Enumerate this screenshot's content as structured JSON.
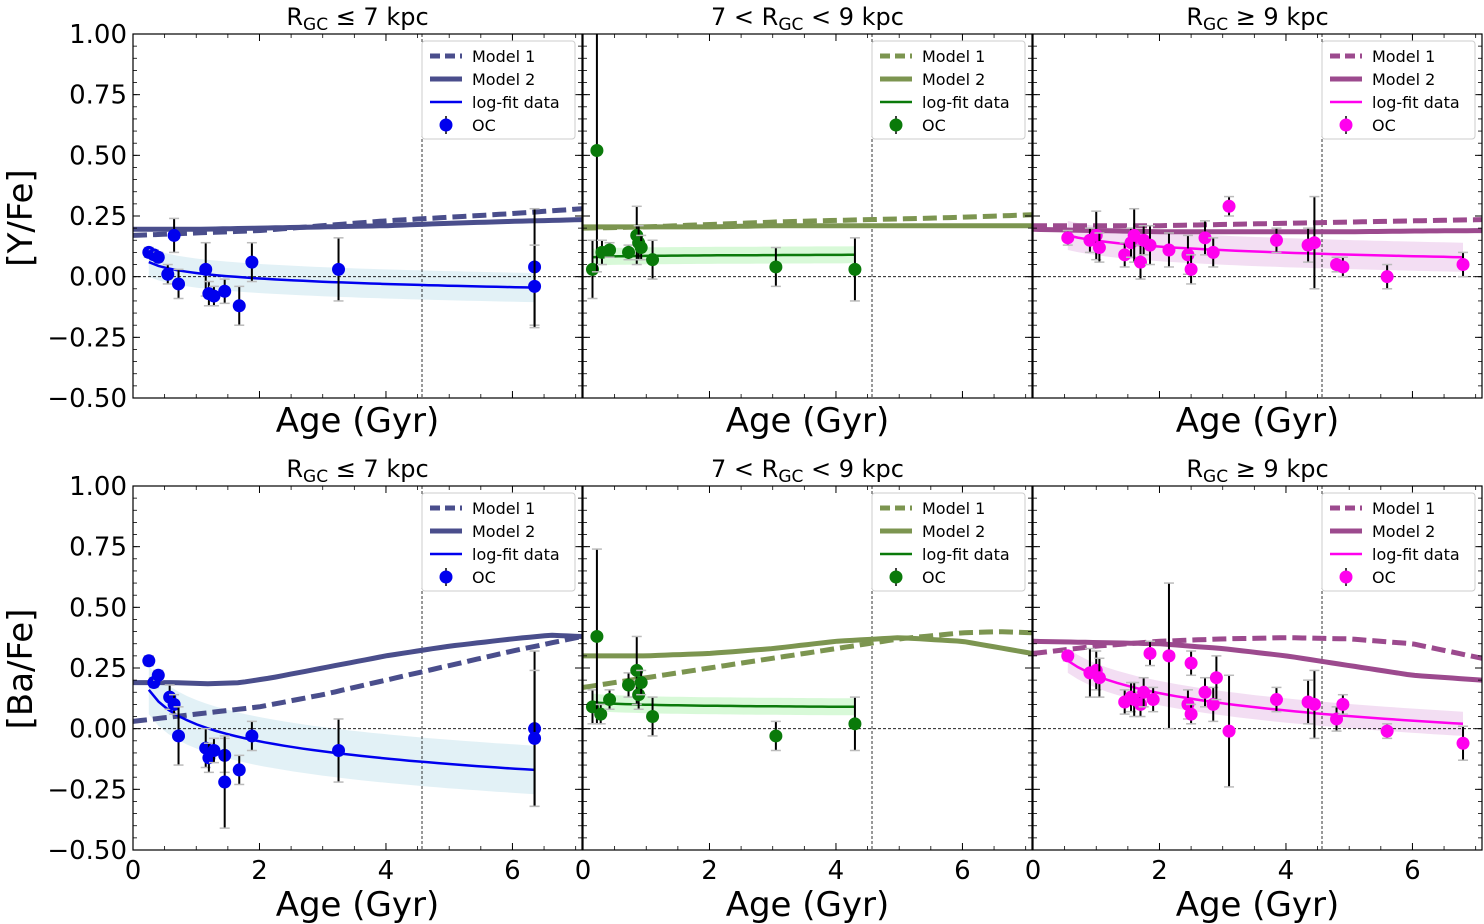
{
  "figure": {
    "x_axis_label": "Age (Gyr)",
    "row_ylabels": [
      "[Y/Fe]",
      "[Ba/Fe]"
    ]
  },
  "chart_data": [
    {
      "type": "scatter",
      "title": "R_GC ≤ 7 kpc",
      "ylabel": "[Y/Fe]",
      "xlabel": "Age (Gyr)",
      "xlim": [
        0,
        7.1
      ],
      "ylim": [
        -0.5,
        1.0
      ],
      "color": "#0000ee",
      "model_color": "#4a4e8c",
      "sun_age": 4.57,
      "legend": [
        "Model 1",
        "Model 2",
        "log-fit data",
        "OC"
      ],
      "points": [
        {
          "x": 0.25,
          "y": 0.1,
          "err": 0.02
        },
        {
          "x": 0.33,
          "y": 0.09,
          "err": 0.02
        },
        {
          "x": 0.4,
          "y": 0.08,
          "err": 0.02
        },
        {
          "x": 0.55,
          "y": 0.01,
          "err": 0.04
        },
        {
          "x": 0.65,
          "y": 0.17,
          "err": 0.07
        },
        {
          "x": 0.72,
          "y": -0.03,
          "err": 0.06
        },
        {
          "x": 1.15,
          "y": 0.03,
          "err": 0.11
        },
        {
          "x": 1.2,
          "y": -0.07,
          "err": 0.05
        },
        {
          "x": 1.28,
          "y": -0.08,
          "err": 0.04
        },
        {
          "x": 1.45,
          "y": -0.06,
          "err": 0.05
        },
        {
          "x": 1.68,
          "y": -0.12,
          "err": 0.08
        },
        {
          "x": 1.88,
          "y": 0.06,
          "err": 0.08
        },
        {
          "x": 3.25,
          "y": 0.03,
          "err": 0.13
        },
        {
          "x": 6.35,
          "y": 0.04,
          "err": 0.24
        },
        {
          "x": 6.35,
          "y": -0.04,
          "err": 0.17
        }
      ],
      "fit": {
        "x0": 0.25,
        "x1": 6.35,
        "y0": 0.06,
        "y1": -0.045,
        "band": 0.06
      },
      "model1": [
        [
          0,
          0.17
        ],
        [
          1,
          0.18
        ],
        [
          2,
          0.19
        ],
        [
          3,
          0.21
        ],
        [
          4,
          0.23
        ],
        [
          5,
          0.245
        ],
        [
          6,
          0.26
        ],
        [
          7.1,
          0.28
        ]
      ],
      "model2": [
        [
          0,
          0.195
        ],
        [
          1,
          0.195
        ],
        [
          2,
          0.2
        ],
        [
          3,
          0.205
        ],
        [
          4,
          0.21
        ],
        [
          5,
          0.22
        ],
        [
          6,
          0.228
        ],
        [
          7.1,
          0.235
        ]
      ]
    },
    {
      "type": "scatter",
      "title": "7 < R_GC < 9 kpc",
      "ylabel": "[Y/Fe]",
      "xlabel": "Age (Gyr)",
      "xlim": [
        0,
        7.1
      ],
      "ylim": [
        -0.5,
        1.0
      ],
      "color": "#0a7a0a",
      "model_color": "#7c9550",
      "sun_age": 4.57,
      "legend": [
        "Model 1",
        "Model 2",
        "log-fit data",
        "OC"
      ],
      "points": [
        {
          "x": 0.15,
          "y": 0.03,
          "err": 0.12
        },
        {
          "x": 0.22,
          "y": 0.52,
          "err": 0.5
        },
        {
          "x": 0.3,
          "y": 0.1,
          "err": 0.05
        },
        {
          "x": 0.42,
          "y": 0.11,
          "err": 0.03
        },
        {
          "x": 0.72,
          "y": 0.1,
          "err": 0.03
        },
        {
          "x": 0.85,
          "y": 0.17,
          "err": 0.12
        },
        {
          "x": 0.88,
          "y": 0.14,
          "err": 0.07
        },
        {
          "x": 0.92,
          "y": 0.12,
          "err": 0.05
        },
        {
          "x": 1.1,
          "y": 0.07,
          "err": 0.08
        },
        {
          "x": 3.05,
          "y": 0.04,
          "err": 0.08
        },
        {
          "x": 4.3,
          "y": 0.03,
          "err": 0.13
        }
      ],
      "fit": {
        "x0": 0.15,
        "x1": 4.3,
        "y0": 0.08,
        "y1": 0.09,
        "band": 0.035
      },
      "model1": [
        [
          0,
          0.2
        ],
        [
          1,
          0.205
        ],
        [
          2,
          0.215
        ],
        [
          3,
          0.225
        ],
        [
          4,
          0.232
        ],
        [
          5,
          0.238
        ],
        [
          6,
          0.245
        ],
        [
          7.1,
          0.255
        ]
      ],
      "model2": [
        [
          0,
          0.205
        ],
        [
          1,
          0.205
        ],
        [
          2,
          0.205
        ],
        [
          3,
          0.21
        ],
        [
          4,
          0.21
        ],
        [
          5,
          0.21
        ],
        [
          6,
          0.21
        ],
        [
          7.1,
          0.21
        ]
      ]
    },
    {
      "type": "scatter",
      "title": "R_GC ≥ 9 kpc",
      "ylabel": "[Y/Fe]",
      "xlabel": "Age (Gyr)",
      "xlim": [
        0,
        7.1
      ],
      "ylim": [
        -0.5,
        1.0
      ],
      "color": "#ff00ee",
      "model_color": "#9c4a8e",
      "sun_age": 4.57,
      "legend": [
        "Model 1",
        "Model 2",
        "log-fit data",
        "OC"
      ],
      "points": [
        {
          "x": 0.55,
          "y": 0.16,
          "err": 0.03
        },
        {
          "x": 0.9,
          "y": 0.15,
          "err": 0.05
        },
        {
          "x": 1.0,
          "y": 0.17,
          "err": 0.1
        },
        {
          "x": 1.05,
          "y": 0.12,
          "err": 0.06
        },
        {
          "x": 1.45,
          "y": 0.09,
          "err": 0.05
        },
        {
          "x": 1.55,
          "y": 0.14,
          "err": 0.06
        },
        {
          "x": 1.6,
          "y": 0.17,
          "err": 0.11
        },
        {
          "x": 1.7,
          "y": 0.06,
          "err": 0.07
        },
        {
          "x": 1.75,
          "y": 0.15,
          "err": 0.06
        },
        {
          "x": 1.85,
          "y": 0.13,
          "err": 0.08
        },
        {
          "x": 2.15,
          "y": 0.11,
          "err": 0.07
        },
        {
          "x": 2.45,
          "y": 0.09,
          "err": 0.08
        },
        {
          "x": 2.5,
          "y": 0.03,
          "err": 0.06
        },
        {
          "x": 2.72,
          "y": 0.16,
          "err": 0.07
        },
        {
          "x": 2.85,
          "y": 0.1,
          "err": 0.06
        },
        {
          "x": 3.1,
          "y": 0.29,
          "err": 0.04
        },
        {
          "x": 3.85,
          "y": 0.15,
          "err": 0.05
        },
        {
          "x": 4.35,
          "y": 0.13,
          "err": 0.07
        },
        {
          "x": 4.45,
          "y": 0.14,
          "err": 0.19
        },
        {
          "x": 4.8,
          "y": 0.05,
          "err": 0.03
        },
        {
          "x": 4.9,
          "y": 0.04,
          "err": 0.04
        },
        {
          "x": 5.6,
          "y": 0.0,
          "err": 0.05
        },
        {
          "x": 6.8,
          "y": 0.05,
          "err": 0.05
        }
      ],
      "fit": {
        "x0": 0.55,
        "x1": 6.8,
        "y0": 0.17,
        "y1": 0.08,
        "band": 0.06
      },
      "model1": [
        [
          0,
          0.21
        ],
        [
          1,
          0.21
        ],
        [
          2,
          0.21
        ],
        [
          3,
          0.215
        ],
        [
          4,
          0.22
        ],
        [
          5,
          0.225
        ],
        [
          6,
          0.23
        ],
        [
          7.1,
          0.235
        ]
      ],
      "model2": [
        [
          0,
          0.195
        ],
        [
          1,
          0.19
        ],
        [
          2,
          0.185
        ],
        [
          3,
          0.185
        ],
        [
          4,
          0.185
        ],
        [
          5,
          0.185
        ],
        [
          6,
          0.188
        ],
        [
          7.1,
          0.19
        ]
      ]
    },
    {
      "type": "scatter",
      "title": "R_GC ≤ 7 kpc",
      "ylabel": "[Ba/Fe]",
      "xlabel": "Age (Gyr)",
      "xlim": [
        0,
        7.1
      ],
      "ylim": [
        -0.5,
        1.0
      ],
      "color": "#0000ee",
      "model_color": "#4a4e8c",
      "sun_age": 4.57,
      "legend": [
        "Model 1",
        "Model 2",
        "log-fit data",
        "OC"
      ],
      "points": [
        {
          "x": 0.25,
          "y": 0.28,
          "err": 0.02
        },
        {
          "x": 0.33,
          "y": 0.19,
          "err": 0.02
        },
        {
          "x": 0.4,
          "y": 0.22,
          "err": 0.02
        },
        {
          "x": 0.58,
          "y": 0.13,
          "err": 0.05
        },
        {
          "x": 0.65,
          "y": 0.1,
          "err": 0.04
        },
        {
          "x": 0.72,
          "y": -0.03,
          "err": 0.12
        },
        {
          "x": 1.15,
          "y": -0.08,
          "err": 0.08
        },
        {
          "x": 1.2,
          "y": -0.12,
          "err": 0.06
        },
        {
          "x": 1.28,
          "y": -0.09,
          "err": 0.05
        },
        {
          "x": 1.45,
          "y": -0.11,
          "err": 0.07
        },
        {
          "x": 1.45,
          "y": -0.22,
          "err": 0.19
        },
        {
          "x": 1.68,
          "y": -0.17,
          "err": 0.06
        },
        {
          "x": 1.88,
          "y": -0.03,
          "err": 0.06
        },
        {
          "x": 3.25,
          "y": -0.09,
          "err": 0.13
        },
        {
          "x": 6.35,
          "y": 0.0,
          "err": 0.32
        },
        {
          "x": 6.35,
          "y": -0.04,
          "err": 0.28
        }
      ],
      "fit": {
        "x0": 0.25,
        "x1": 6.35,
        "y0": 0.16,
        "y1": -0.17,
        "band": 0.1
      },
      "model1": [
        [
          0,
          0.03
        ],
        [
          1,
          0.06
        ],
        [
          2,
          0.09
        ],
        [
          3,
          0.14
        ],
        [
          4,
          0.2
        ],
        [
          5,
          0.26
        ],
        [
          6,
          0.32
        ],
        [
          7.1,
          0.38
        ]
      ],
      "model2": [
        [
          0,
          0.19
        ],
        [
          0.6,
          0.19
        ],
        [
          1.2,
          0.185
        ],
        [
          1.7,
          0.19
        ],
        [
          2.2,
          0.21
        ],
        [
          3,
          0.25
        ],
        [
          4,
          0.3
        ],
        [
          5,
          0.34
        ],
        [
          6,
          0.37
        ],
        [
          6.6,
          0.385
        ],
        [
          7.1,
          0.38
        ]
      ]
    },
    {
      "type": "scatter",
      "title": "7 < R_GC < 9 kpc",
      "ylabel": "[Ba/Fe]",
      "xlabel": "Age (Gyr)",
      "xlim": [
        0,
        7.1
      ],
      "ylim": [
        -0.5,
        1.0
      ],
      "color": "#0a7a0a",
      "model_color": "#7c9550",
      "sun_age": 4.57,
      "legend": [
        "Model 1",
        "Model 2",
        "log-fit data",
        "OC"
      ],
      "points": [
        {
          "x": 0.15,
          "y": 0.09,
          "err": 0.07
        },
        {
          "x": 0.22,
          "y": 0.38,
          "err": 0.36
        },
        {
          "x": 0.28,
          "y": 0.06,
          "err": 0.04
        },
        {
          "x": 0.42,
          "y": 0.12,
          "err": 0.04
        },
        {
          "x": 0.72,
          "y": 0.18,
          "err": 0.05
        },
        {
          "x": 0.85,
          "y": 0.24,
          "err": 0.14
        },
        {
          "x": 0.88,
          "y": 0.14,
          "err": 0.06
        },
        {
          "x": 0.92,
          "y": 0.19,
          "err": 0.05
        },
        {
          "x": 1.1,
          "y": 0.05,
          "err": 0.08
        },
        {
          "x": 3.05,
          "y": -0.03,
          "err": 0.06
        },
        {
          "x": 4.3,
          "y": 0.02,
          "err": 0.11
        }
      ],
      "fit": {
        "x0": 0.15,
        "x1": 4.3,
        "y0": 0.11,
        "y1": 0.09,
        "band": 0.035
      },
      "model1": [
        [
          0,
          0.17
        ],
        [
          1,
          0.21
        ],
        [
          2,
          0.25
        ],
        [
          3,
          0.29
        ],
        [
          4,
          0.33
        ],
        [
          5,
          0.37
        ],
        [
          6,
          0.395
        ],
        [
          6.6,
          0.4
        ],
        [
          7.1,
          0.395
        ]
      ],
      "model2": [
        [
          0,
          0.3
        ],
        [
          1,
          0.3
        ],
        [
          2,
          0.31
        ],
        [
          3,
          0.33
        ],
        [
          4,
          0.36
        ],
        [
          5,
          0.375
        ],
        [
          6,
          0.36
        ],
        [
          7.1,
          0.31
        ]
      ]
    },
    {
      "type": "scatter",
      "title": "R_GC ≥ 9 kpc",
      "ylabel": "[Ba/Fe]",
      "xlabel": "Age (Gyr)",
      "xlim": [
        0,
        7.1
      ],
      "ylim": [
        -0.5,
        1.0
      ],
      "color": "#ff00ee",
      "model_color": "#9c4a8e",
      "sun_age": 4.57,
      "legend": [
        "Model 1",
        "Model 2",
        "log-fit data",
        "OC"
      ],
      "points": [
        {
          "x": 0.55,
          "y": 0.3,
          "err": 0.02
        },
        {
          "x": 0.9,
          "y": 0.23,
          "err": 0.1
        },
        {
          "x": 1.0,
          "y": 0.24,
          "err": 0.08
        },
        {
          "x": 1.05,
          "y": 0.21,
          "err": 0.08
        },
        {
          "x": 1.45,
          "y": 0.11,
          "err": 0.05
        },
        {
          "x": 1.55,
          "y": 0.13,
          "err": 0.06
        },
        {
          "x": 1.6,
          "y": 0.12,
          "err": 0.07
        },
        {
          "x": 1.7,
          "y": 0.1,
          "err": 0.05
        },
        {
          "x": 1.75,
          "y": 0.15,
          "err": 0.06
        },
        {
          "x": 1.85,
          "y": 0.31,
          "err": 0.05
        },
        {
          "x": 1.9,
          "y": 0.12,
          "err": 0.05
        },
        {
          "x": 2.15,
          "y": 0.3,
          "err": 0.3
        },
        {
          "x": 2.45,
          "y": 0.1,
          "err": 0.06
        },
        {
          "x": 2.5,
          "y": 0.27,
          "err": 0.05
        },
        {
          "x": 2.5,
          "y": 0.06,
          "err": 0.04
        },
        {
          "x": 2.72,
          "y": 0.15,
          "err": 0.06
        },
        {
          "x": 2.85,
          "y": 0.1,
          "err": 0.07
        },
        {
          "x": 2.9,
          "y": 0.21,
          "err": 0.09
        },
        {
          "x": 3.1,
          "y": -0.01,
          "err": 0.23
        },
        {
          "x": 3.85,
          "y": 0.12,
          "err": 0.05
        },
        {
          "x": 4.35,
          "y": 0.11,
          "err": 0.09
        },
        {
          "x": 4.45,
          "y": 0.1,
          "err": 0.14
        },
        {
          "x": 4.8,
          "y": 0.04,
          "err": 0.05
        },
        {
          "x": 4.9,
          "y": 0.1,
          "err": 0.04
        },
        {
          "x": 5.6,
          "y": -0.01,
          "err": 0.03
        },
        {
          "x": 6.8,
          "y": -0.06,
          "err": 0.07
        }
      ],
      "fit": {
        "x0": 0.55,
        "x1": 6.8,
        "y0": 0.28,
        "y1": 0.02,
        "band": 0.05
      },
      "model1": [
        [
          0,
          0.31
        ],
        [
          1,
          0.34
        ],
        [
          2,
          0.36
        ],
        [
          3,
          0.37
        ],
        [
          4,
          0.375
        ],
        [
          5,
          0.37
        ],
        [
          6,
          0.35
        ],
        [
          7.1,
          0.29
        ]
      ],
      "model2": [
        [
          0,
          0.36
        ],
        [
          1,
          0.355
        ],
        [
          2,
          0.35
        ],
        [
          3,
          0.33
        ],
        [
          4,
          0.3
        ],
        [
          5,
          0.26
        ],
        [
          6,
          0.22
        ],
        [
          7.1,
          0.2
        ]
      ]
    }
  ]
}
